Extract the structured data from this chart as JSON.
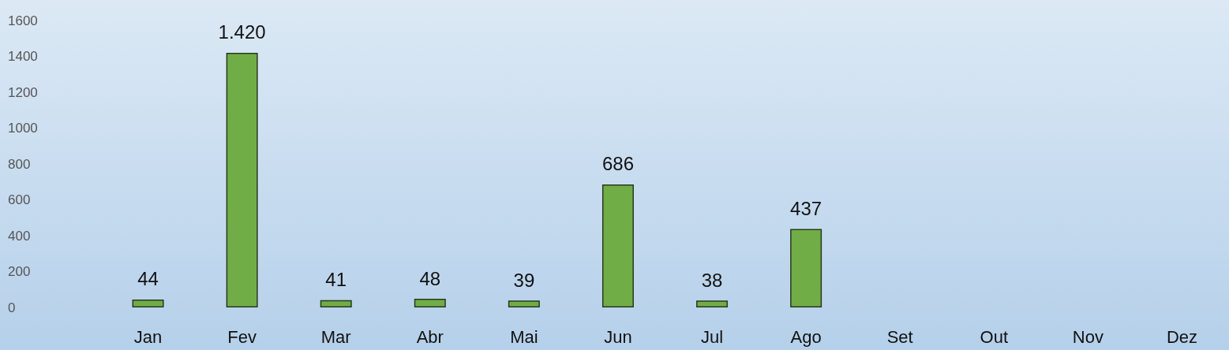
{
  "chart_data": {
    "type": "bar",
    "categories": [
      "Jan",
      "Fev",
      "Mar",
      "Abr",
      "Mai",
      "Jun",
      "Jul",
      "Ago",
      "Set",
      "Out",
      "Nov",
      "Dez"
    ],
    "values": [
      44,
      1420,
      41,
      48,
      39,
      686,
      38,
      437,
      null,
      null,
      null,
      null
    ],
    "value_labels": [
      "44",
      "1.420",
      "41",
      "48",
      "39",
      "686",
      "38",
      "437",
      null,
      null,
      null,
      null
    ],
    "color": "#70ad47",
    "ylim": [
      0,
      1600
    ],
    "yticks": [
      0,
      200,
      400,
      600,
      800,
      1000,
      1200,
      1400,
      1600
    ],
    "grid": false
  }
}
